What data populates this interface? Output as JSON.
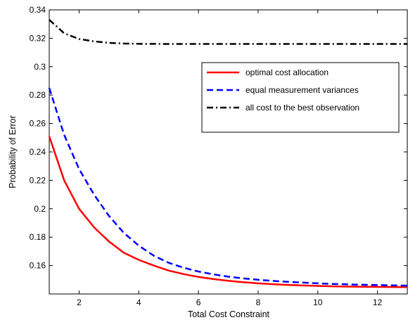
{
  "chart_data": {
    "type": "line",
    "xlabel": "Total Cost Constraint",
    "ylabel": "Probability of Error",
    "xlim": [
      1,
      13
    ],
    "ylim": [
      0.14,
      0.34
    ],
    "xticks": [
      2,
      4,
      6,
      8,
      10,
      12
    ],
    "xtick_labels": [
      "2",
      "4",
      "6",
      "8",
      "10",
      "12"
    ],
    "yticks": [
      0.16,
      0.18,
      0.2,
      0.22,
      0.24,
      0.26,
      0.28,
      0.3,
      0.32,
      0.34
    ],
    "ytick_labels": [
      "0.16",
      "0.18",
      "0.2",
      "0.22",
      "0.24",
      "0.26",
      "0.28",
      "0.3",
      "0.32",
      "0.34"
    ],
    "grid": false,
    "legend_position": "upper-right",
    "series": [
      {
        "name": "optimal cost allocation",
        "color": "#ff0000",
        "style": "solid",
        "x": [
          1,
          1.5,
          2,
          2.5,
          3,
          3.5,
          4,
          4.5,
          5,
          5.5,
          6,
          6.5,
          7,
          7.5,
          8,
          8.5,
          9,
          9.5,
          10,
          10.5,
          11,
          11.5,
          12,
          12.5,
          13
        ],
        "y": [
          0.251,
          0.22,
          0.2,
          0.187,
          0.177,
          0.169,
          0.164,
          0.16,
          0.1565,
          0.154,
          0.152,
          0.1505,
          0.1493,
          0.1483,
          0.1475,
          0.1469,
          0.1464,
          0.146,
          0.1457,
          0.1454,
          0.1452,
          0.1451,
          0.145,
          0.1449,
          0.1448
        ]
      },
      {
        "name": "equal measurement variances",
        "color": "#0000ff",
        "style": "dashed",
        "x": [
          1,
          1.5,
          2,
          2.5,
          3,
          3.5,
          4,
          4.5,
          5,
          5.5,
          6,
          6.5,
          7,
          7.5,
          8,
          8.5,
          9,
          9.5,
          10,
          10.5,
          11,
          11.5,
          12,
          12.5,
          13
        ],
        "y": [
          0.285,
          0.252,
          0.228,
          0.21,
          0.195,
          0.183,
          0.174,
          0.167,
          0.162,
          0.1585,
          0.1558,
          0.1538,
          0.1522,
          0.151,
          0.15,
          0.1492,
          0.1485,
          0.148,
          0.1475,
          0.1471,
          0.1468,
          0.1465,
          0.1463,
          0.1461,
          0.1459
        ]
      },
      {
        "name": "all cost to the best observation",
        "color": "#000000",
        "style": "dashdot",
        "x": [
          1,
          1.5,
          2,
          2.5,
          3,
          3.5,
          4,
          5,
          6,
          7,
          8,
          9,
          10,
          11,
          12,
          13
        ],
        "y": [
          0.333,
          0.3235,
          0.3195,
          0.3178,
          0.3168,
          0.3163,
          0.3161,
          0.316,
          0.316,
          0.316,
          0.316,
          0.316,
          0.316,
          0.316,
          0.316,
          0.316
        ]
      }
    ]
  }
}
